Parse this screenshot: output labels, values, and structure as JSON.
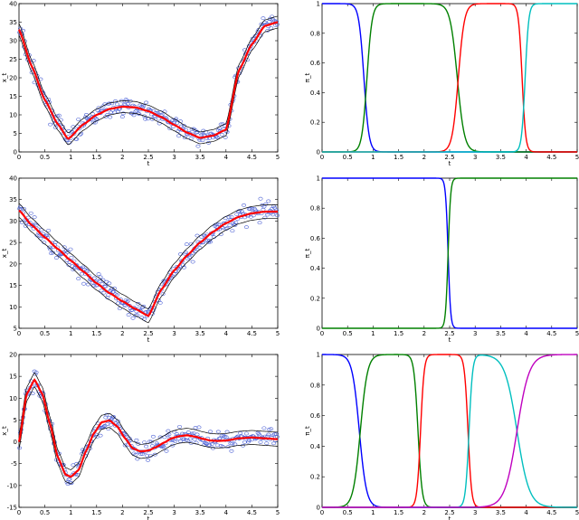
{
  "colors": {
    "samples": "#4a5fd4",
    "fit": "#ff0000",
    "band": "#000000",
    "blue": "#0000ff",
    "green": "#008000",
    "red": "#ff0000",
    "cyan": "#00bfbf",
    "magenta": "#bf00bf"
  },
  "chart_data": [
    {
      "panel": "top-left",
      "type": "scatter",
      "xlabel": "t",
      "ylabel": "x_t",
      "xlim": [
        0,
        5
      ],
      "ylim": [
        0,
        40
      ],
      "xticks": [
        "0",
        "0.5",
        "1",
        "1.5",
        "2",
        "2.5",
        "3",
        "3.5",
        "4",
        "4.5",
        "5"
      ],
      "yticks": [
        "0",
        "5",
        "10",
        "15",
        "20",
        "25",
        "30",
        "35",
        "40"
      ],
      "series": [
        {
          "role": "fit",
          "x": [
            0,
            0.25,
            0.5,
            0.75,
            0.95,
            1.25,
            1.5,
            1.75,
            2.0,
            2.25,
            2.5,
            2.75,
            3.0,
            3.25,
            3.5,
            3.75,
            4.0,
            4.25,
            4.5,
            4.75,
            5.0
          ],
          "y": [
            33,
            23,
            14,
            7.5,
            3.5,
            7.5,
            10,
            11.6,
            12.2,
            12,
            11,
            9.4,
            7.3,
            5.2,
            3.8,
            4.4,
            6,
            22,
            29,
            34,
            35
          ]
        }
      ]
    },
    {
      "panel": "top-right",
      "type": "line",
      "xlabel": "t",
      "ylabel": "π_t",
      "xlim": [
        0,
        5
      ],
      "ylim": [
        0,
        1
      ],
      "xticks": [
        "0",
        "0.5",
        "1",
        "1.5",
        "2",
        "2.5",
        "3",
        "3.5",
        "4",
        "4.5",
        "5"
      ],
      "yticks": [
        "0",
        "0.2",
        "0.4",
        "0.6",
        "0.8",
        "1"
      ],
      "series": [
        {
          "color": "blue",
          "shape": "fall",
          "center": 0.82,
          "width": 0.05,
          "from": 0,
          "to": 5
        },
        {
          "color": "green",
          "shape": "bump",
          "rise": 0.88,
          "rise_width": 0.05,
          "fall": 2.65,
          "fall_width": 0.07,
          "from": 0,
          "to": 5
        },
        {
          "color": "red",
          "shape": "bump",
          "rise": 2.67,
          "rise_width": 0.06,
          "fall": 3.92,
          "fall_width": 0.035,
          "from": 0,
          "to": 5
        },
        {
          "color": "cyan",
          "shape": "rise",
          "center": 3.98,
          "width": 0.035,
          "from": 0,
          "to": 5
        }
      ]
    },
    {
      "panel": "mid-left",
      "type": "scatter",
      "xlabel": "t",
      "ylabel": "x_t",
      "xlim": [
        0,
        5
      ],
      "ylim": [
        5,
        40
      ],
      "xticks": [
        "0",
        "0.5",
        "1",
        "1.5",
        "2",
        "2.5",
        "3",
        "3.5",
        "4",
        "4.5",
        "5"
      ],
      "yticks": [
        "5",
        "10",
        "15",
        "20",
        "25",
        "30",
        "35",
        "40"
      ],
      "series": [
        {
          "role": "fit",
          "x": [
            0,
            0.25,
            0.5,
            0.75,
            1.0,
            1.25,
            1.5,
            1.75,
            2.0,
            2.25,
            2.5,
            2.75,
            3.0,
            3.25,
            3.5,
            3.75,
            4.0,
            4.25,
            4.5,
            4.75,
            5.0
          ],
          "y": [
            32.5,
            29,
            26.2,
            23.5,
            20.8,
            18.2,
            15.5,
            13.2,
            11.3,
            9.5,
            7.9,
            14,
            18.5,
            22,
            25,
            27.5,
            29.5,
            31,
            31.8,
            32.2,
            32.2
          ]
        }
      ]
    },
    {
      "panel": "mid-right",
      "type": "line",
      "xlabel": "t",
      "ylabel": "π_t",
      "xlim": [
        0,
        5
      ],
      "ylim": [
        0,
        1
      ],
      "xticks": [
        "0",
        "0.5",
        "1",
        "1.5",
        "2",
        "2.5",
        "3",
        "3.5",
        "4",
        "4.5",
        "5"
      ],
      "yticks": [
        "0",
        "0.2",
        "0.4",
        "0.6",
        "0.8",
        "1"
      ],
      "series": [
        {
          "color": "blue",
          "shape": "fall",
          "center": 2.47,
          "width": 0.025,
          "from": 0,
          "to": 5
        },
        {
          "color": "green",
          "shape": "rise",
          "center": 2.47,
          "width": 0.025,
          "from": 0,
          "to": 5
        }
      ]
    },
    {
      "panel": "bottom-left",
      "type": "scatter",
      "xlabel": "t",
      "ylabel": "x_t",
      "xlim": [
        0,
        5
      ],
      "ylim": [
        -15,
        20
      ],
      "xticks": [
        "0",
        "0.5",
        "1",
        "1.5",
        "2",
        "2.5",
        "3",
        "3.5",
        "4",
        "4.5",
        "5"
      ],
      "yticks": [
        "-15",
        "-10",
        "-5",
        "0",
        "5",
        "10",
        "15",
        "20"
      ],
      "series": [
        {
          "role": "fit",
          "x": [
            0,
            0.15,
            0.3,
            0.45,
            0.6,
            0.75,
            0.9,
            1.0,
            1.15,
            1.3,
            1.45,
            1.6,
            1.75,
            1.9,
            2.05,
            2.2,
            2.35,
            2.5,
            2.65,
            2.8,
            2.95,
            3.1,
            3.25,
            3.4,
            3.55,
            3.7,
            3.85,
            4.0,
            4.25,
            4.5,
            4.75,
            5.0
          ],
          "y": [
            0,
            11,
            14.2,
            11,
            4,
            -3.5,
            -7.5,
            -8,
            -6.5,
            -2,
            2,
            4.5,
            4.9,
            3.5,
            0.8,
            -1.5,
            -2.2,
            -2,
            -1.2,
            -0.2,
            0.8,
            1.3,
            1.5,
            1.2,
            0.7,
            0.3,
            0.2,
            0.3,
            0.8,
            1.0,
            0.8,
            0.6
          ]
        }
      ]
    },
    {
      "panel": "bottom-right",
      "type": "line",
      "xlabel": "t",
      "ylabel": "π_t",
      "xlim": [
        0,
        5
      ],
      "ylim": [
        0,
        1
      ],
      "xticks": [
        "0",
        "0.5",
        "1",
        "1.5",
        "2",
        "2.5",
        "3",
        "3.5",
        "4",
        "4.5",
        "5"
      ],
      "yticks": [
        "0",
        "0.2",
        "0.4",
        "0.6",
        "0.8",
        "1"
      ],
      "series": [
        {
          "color": "blue",
          "shape": "fall",
          "center": 0.73,
          "width": 0.07,
          "from": 0,
          "to": 5
        },
        {
          "color": "green",
          "shape": "bump",
          "rise": 0.75,
          "rise_width": 0.07,
          "fall": 1.88,
          "fall_width": 0.04,
          "from": 0,
          "to": 5
        },
        {
          "color": "red",
          "shape": "bump",
          "rise": 1.93,
          "rise_width": 0.035,
          "fall": 2.86,
          "fall_width": 0.035,
          "from": 0,
          "to": 5
        },
        {
          "color": "cyan",
          "shape": "bump",
          "rise": 2.88,
          "rise_width": 0.035,
          "fall": 3.82,
          "fall_width": 0.12,
          "from": 0,
          "to": 5
        },
        {
          "color": "magenta",
          "shape": "rise",
          "center": 3.82,
          "width": 0.12,
          "from": 0,
          "to": 5
        }
      ]
    }
  ]
}
